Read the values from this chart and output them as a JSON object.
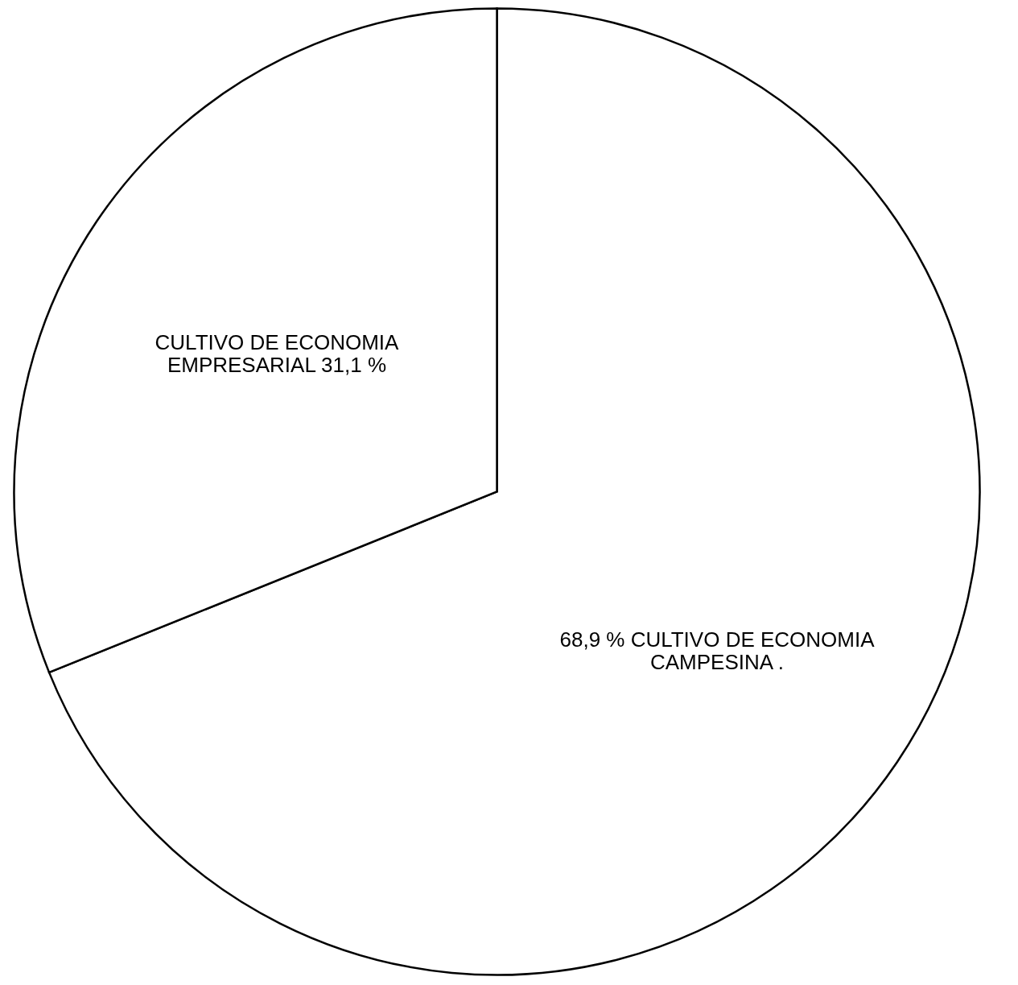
{
  "chart_data": {
    "type": "pie",
    "categories": [
      "CULTIVO DE ECONOMIA\nCAMPESINA .",
      "CULTIVO DE ECONOMIA\nEMPRESARIAL"
    ],
    "values": [
      68.9,
      31.1
    ],
    "value_labels": [
      "68,9 %",
      "31,1 %"
    ],
    "colors": [
      "#ffffff",
      "#ffffff"
    ],
    "legend": false
  }
}
